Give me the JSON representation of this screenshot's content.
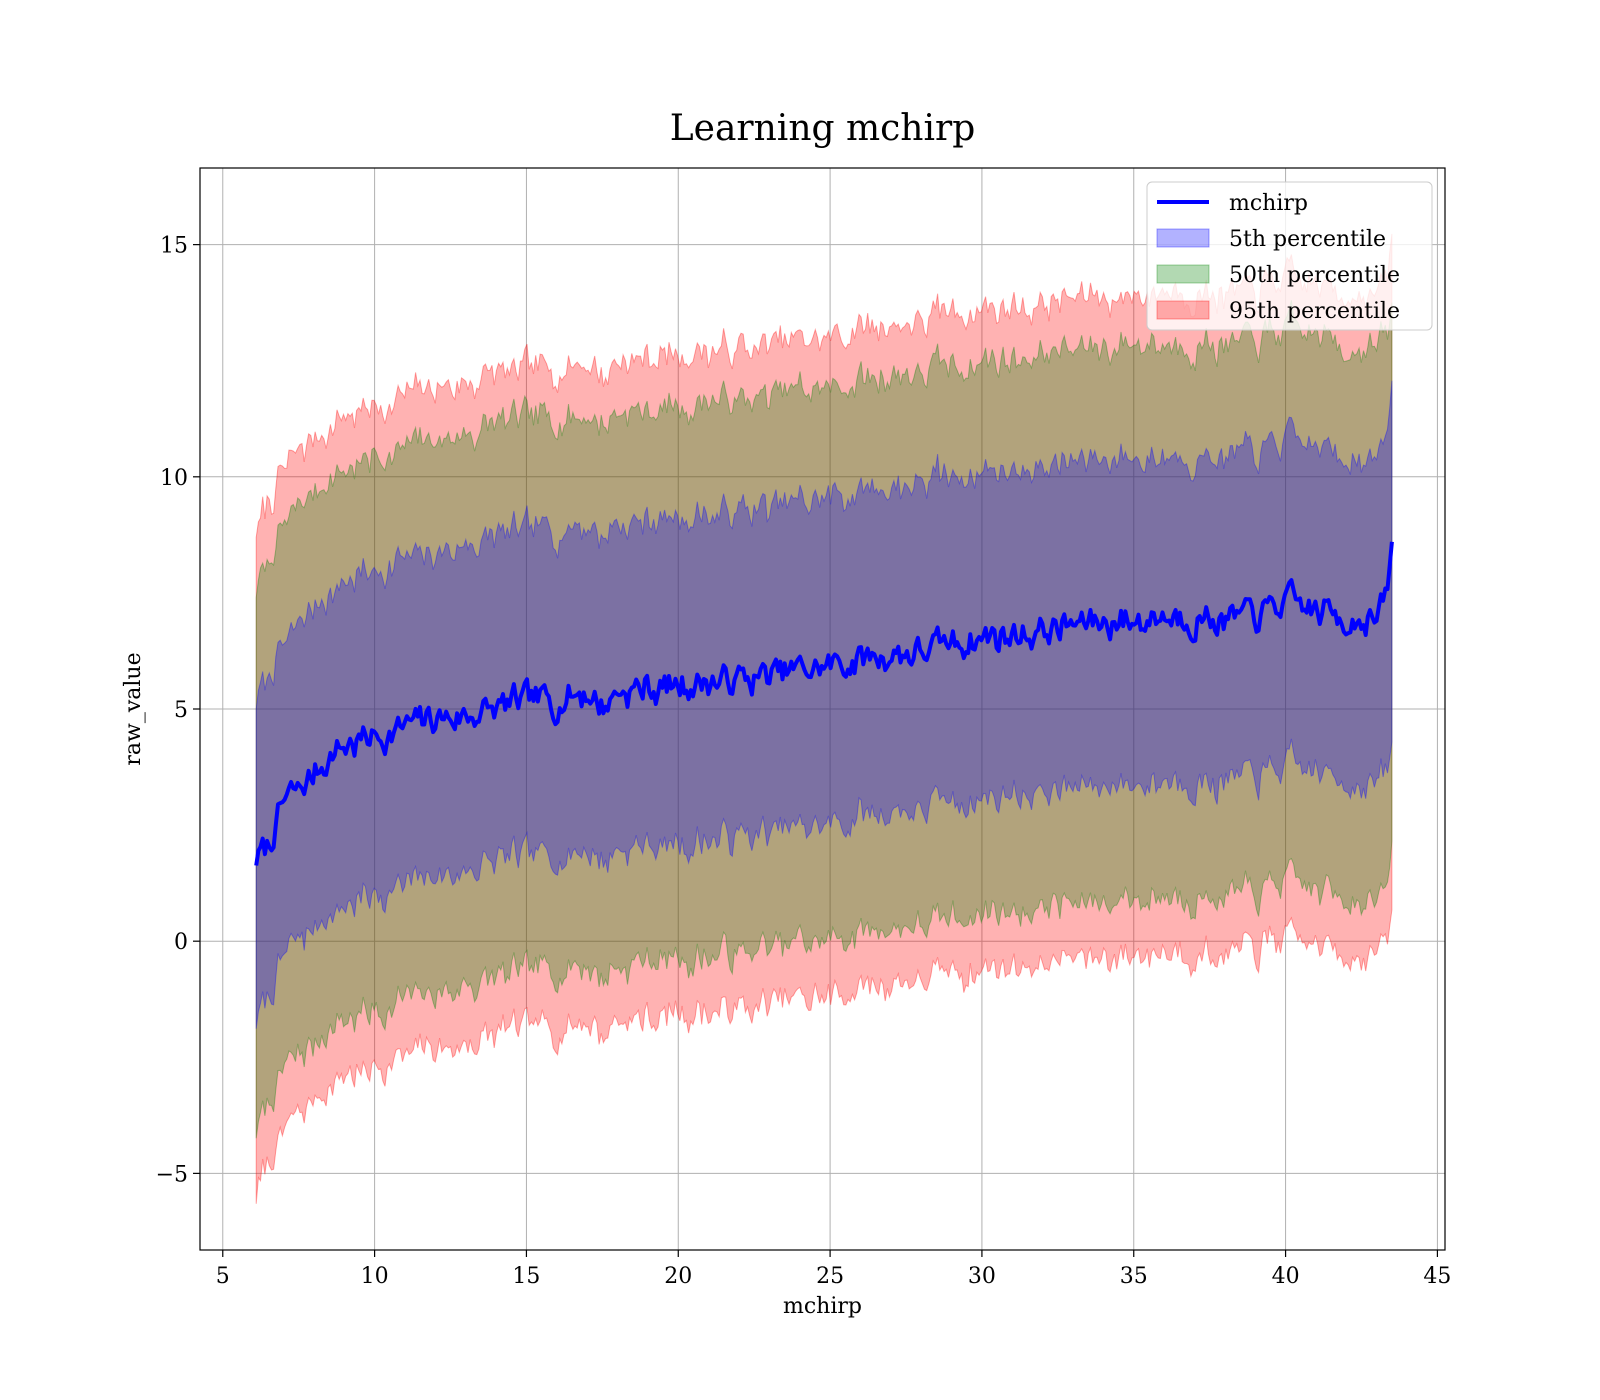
{
  "chart_data": {
    "type": "area",
    "title": "Learning mchirp",
    "xlabel": "mchirp",
    "ylabel": "raw_value",
    "xlim": [
      4.25,
      45.25
    ],
    "ylim": [
      -6.65,
      16.65
    ],
    "xticks": [
      5,
      10,
      15,
      20,
      25,
      30,
      35,
      40,
      45
    ],
    "xtick_labels": [
      "5",
      "10",
      "15",
      "20",
      "25",
      "30",
      "35",
      "40",
      "45"
    ],
    "yticks": [
      -5,
      0,
      5,
      10,
      15
    ],
    "ytick_labels": [
      "−5",
      "0",
      "5",
      "10",
      "15"
    ],
    "grid": true,
    "legend_position": "top-right",
    "x": [
      6.1,
      6.5,
      7,
      7.5,
      8,
      8.5,
      9,
      9.5,
      10,
      11,
      12,
      13,
      14,
      15,
      16,
      17,
      17.5,
      18,
      19,
      20,
      21,
      22,
      23,
      24,
      25,
      26,
      27,
      28,
      29,
      30,
      31,
      32,
      33,
      34,
      35,
      36,
      37,
      38,
      39,
      40,
      41,
      42,
      43,
      43.3,
      43.5
    ],
    "series": [
      {
        "name": "mchirp",
        "kind": "line",
        "color": "#0000ff",
        "values": [
          1.8,
          2.0,
          3.0,
          3.2,
          3.6,
          4.0,
          4.2,
          4.3,
          4.4,
          4.6,
          4.8,
          4.85,
          5.0,
          5.15,
          5.2,
          5.4,
          5.0,
          5.4,
          5.45,
          5.5,
          5.6,
          5.65,
          5.7,
          5.85,
          5.9,
          6.1,
          6.2,
          6.25,
          6.4,
          6.55,
          6.6,
          6.7,
          6.8,
          6.9,
          6.9,
          7.0,
          7.0,
          6.9,
          7.0,
          7.3,
          7.1,
          7.0,
          6.95,
          7.3,
          8.4
        ]
      },
      {
        "name": "5th percentile",
        "kind": "band",
        "color": "#0000ff",
        "opacity": 0.3,
        "lower": [
          -1.8,
          -1.2,
          -0.3,
          0.0,
          0.3,
          0.6,
          0.8,
          0.9,
          1.0,
          1.2,
          1.4,
          1.5,
          1.7,
          1.8,
          1.85,
          2.0,
          1.7,
          2.0,
          2.05,
          2.1,
          2.2,
          2.25,
          2.3,
          2.45,
          2.5,
          2.7,
          2.8,
          2.85,
          3.0,
          3.1,
          3.15,
          3.25,
          3.3,
          3.4,
          3.4,
          3.5,
          3.5,
          3.4,
          3.5,
          3.8,
          3.6,
          3.5,
          3.4,
          3.5,
          4.2
        ],
        "upper": [
          5.2,
          5.6,
          6.4,
          6.8,
          7.2,
          7.5,
          7.7,
          7.9,
          8.0,
          8.2,
          8.4,
          8.5,
          8.7,
          8.8,
          8.85,
          9.0,
          8.7,
          9.0,
          9.05,
          9.1,
          9.2,
          9.25,
          9.3,
          9.45,
          9.5,
          9.7,
          9.8,
          9.85,
          10.0,
          10.1,
          10.15,
          10.25,
          10.3,
          10.4,
          10.4,
          10.5,
          10.5,
          10.4,
          10.5,
          10.8,
          10.6,
          10.5,
          10.4,
          10.7,
          11.8
        ]
      },
      {
        "name": "50th percentile",
        "kind": "band",
        "color": "#008000",
        "opacity": 0.3,
        "lower": [
          -4.2,
          -3.5,
          -2.8,
          -2.5,
          -2.2,
          -1.9,
          -1.7,
          -1.6,
          -1.5,
          -1.3,
          -1.1,
          -1.0,
          -0.8,
          -0.7,
          -0.6,
          -0.5,
          -0.8,
          -0.5,
          -0.45,
          -0.4,
          -0.3,
          -0.25,
          -0.2,
          -0.05,
          0.0,
          0.2,
          0.3,
          0.35,
          0.5,
          0.6,
          0.65,
          0.75,
          0.8,
          0.9,
          0.9,
          1.0,
          1.0,
          0.9,
          1.0,
          1.3,
          1.1,
          1.0,
          0.9,
          1.0,
          1.9
        ],
        "upper": [
          7.6,
          8.1,
          8.9,
          9.3,
          9.7,
          10.0,
          10.2,
          10.3,
          10.4,
          10.6,
          10.8,
          10.9,
          11.1,
          11.2,
          11.25,
          11.4,
          11.1,
          11.4,
          11.45,
          11.5,
          11.6,
          11.65,
          11.7,
          11.85,
          11.9,
          12.1,
          12.2,
          12.25,
          12.4,
          12.5,
          12.55,
          12.65,
          12.7,
          12.8,
          12.8,
          12.9,
          12.9,
          12.8,
          12.9,
          13.2,
          13.0,
          12.9,
          12.8,
          13.0,
          13.5
        ]
      },
      {
        "name": "95th percentile",
        "kind": "band",
        "color": "#ff0000",
        "opacity": 0.3,
        "lower": [
          -5.4,
          -4.8,
          -4.1,
          -3.7,
          -3.4,
          -3.1,
          -2.9,
          -2.8,
          -2.7,
          -2.5,
          -2.3,
          -2.2,
          -2.0,
          -1.9,
          -1.85,
          -1.7,
          -2.0,
          -1.7,
          -1.65,
          -1.6,
          -1.5,
          -1.45,
          -1.4,
          -1.25,
          -1.2,
          -1.0,
          -0.9,
          -0.85,
          -0.7,
          -0.6,
          -0.55,
          -0.45,
          -0.4,
          -0.3,
          -0.3,
          -0.2,
          -0.2,
          -0.3,
          -0.2,
          0.1,
          -0.1,
          -0.2,
          -0.3,
          -0.1,
          0.5
        ],
        "upper": [
          8.9,
          9.4,
          10.1,
          10.5,
          10.8,
          11.1,
          11.3,
          11.4,
          11.5,
          11.7,
          11.9,
          12.0,
          12.2,
          12.3,
          12.35,
          12.5,
          12.2,
          12.5,
          12.55,
          12.6,
          12.7,
          12.75,
          12.8,
          12.95,
          13.0,
          13.2,
          13.3,
          13.35,
          13.5,
          13.6,
          13.65,
          13.75,
          13.8,
          13.9,
          13.9,
          14.0,
          14.0,
          13.9,
          14.0,
          14.3,
          14.1,
          14.0,
          13.9,
          14.1,
          15.0
        ]
      }
    ]
  }
}
